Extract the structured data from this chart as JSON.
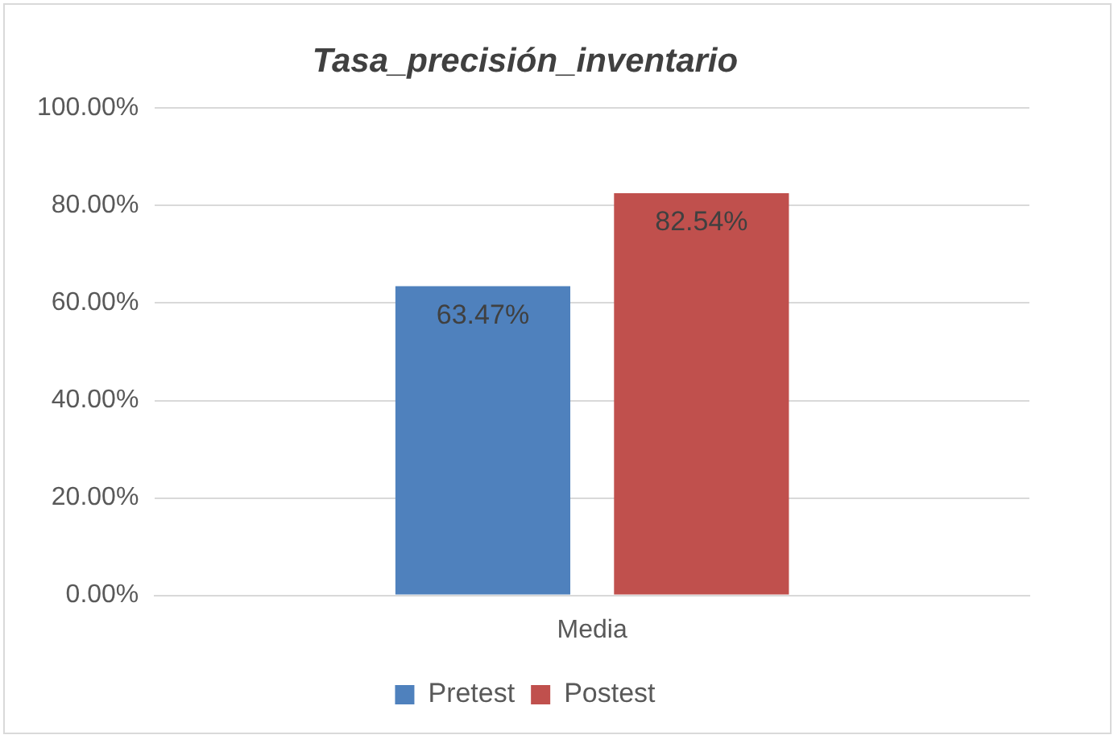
{
  "chart_data": {
    "type": "bar",
    "title": "Tasa_precisión_inventario",
    "categories": [
      "Media"
    ],
    "series": [
      {
        "name": "Pretest",
        "color": "#4f81bd",
        "values": [
          63.47
        ],
        "value_labels": [
          "63.47%"
        ]
      },
      {
        "name": "Postest",
        "color": "#c0504d",
        "values": [
          82.54
        ],
        "value_labels": [
          "82.54%"
        ]
      }
    ],
    "ylim": [
      0,
      100
    ],
    "yticks": [
      {
        "value": 0,
        "label": "0.00%"
      },
      {
        "value": 20,
        "label": "20.00%"
      },
      {
        "value": 40,
        "label": "40.00%"
      },
      {
        "value": 60,
        "label": "60.00%"
      },
      {
        "value": 80,
        "label": "80.00%"
      },
      {
        "value": 100,
        "label": "100.00%"
      }
    ],
    "grid": "y",
    "legend": "bottom"
  }
}
